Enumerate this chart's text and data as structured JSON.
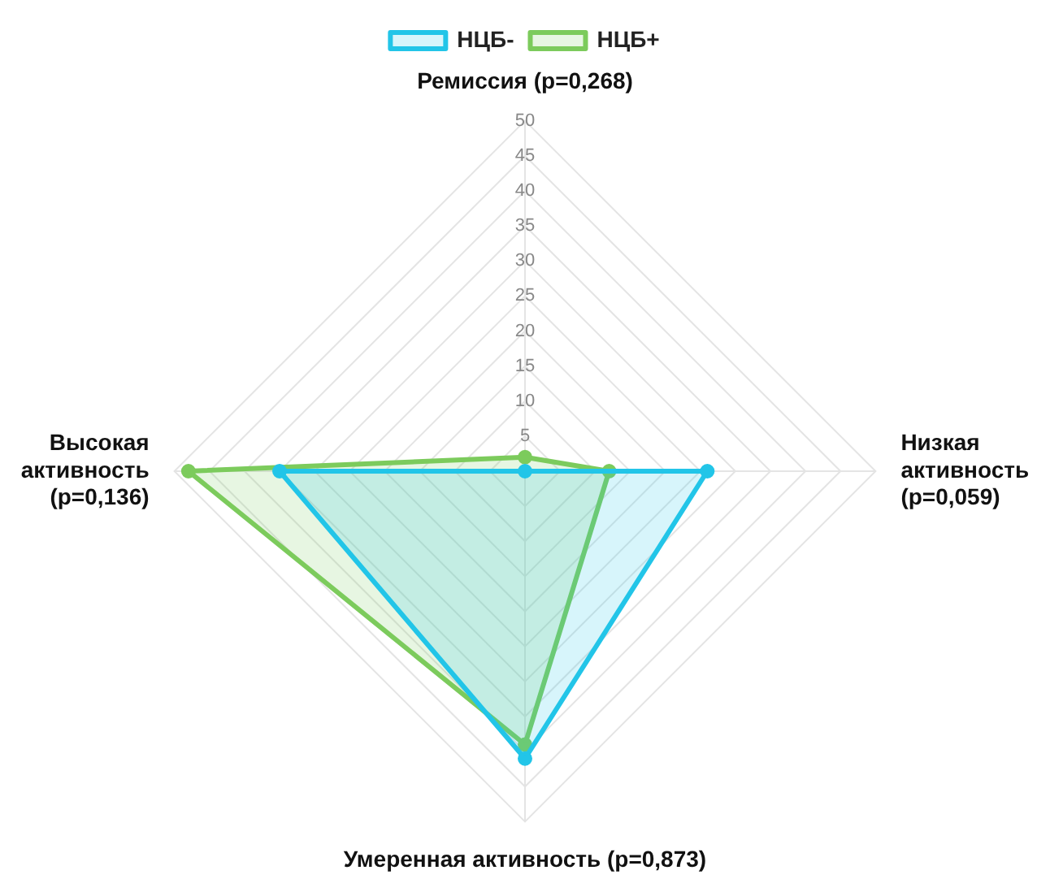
{
  "chart_data": {
    "type": "radar",
    "categories": [
      "Ремиссия (p=0,268)",
      "Низкая\nактивность\n(p=0,059)",
      "Умеренная активность (p=0,873)",
      "Высокая\nактивность\n(p=0,136)"
    ],
    "series": [
      {
        "name": "НЦБ-",
        "color": "#22c5e8",
        "values": [
          0,
          26,
          41,
          35
        ]
      },
      {
        "name": "НЦБ+",
        "color": "#7ccb5c",
        "values": [
          2,
          12,
          39,
          48
        ]
      }
    ],
    "ylim": [
      0,
      50
    ],
    "yticks": [
      5,
      10,
      15,
      20,
      25,
      30,
      35,
      40,
      45,
      50
    ],
    "grid": true,
    "legend": "top",
    "marker": "circle"
  }
}
